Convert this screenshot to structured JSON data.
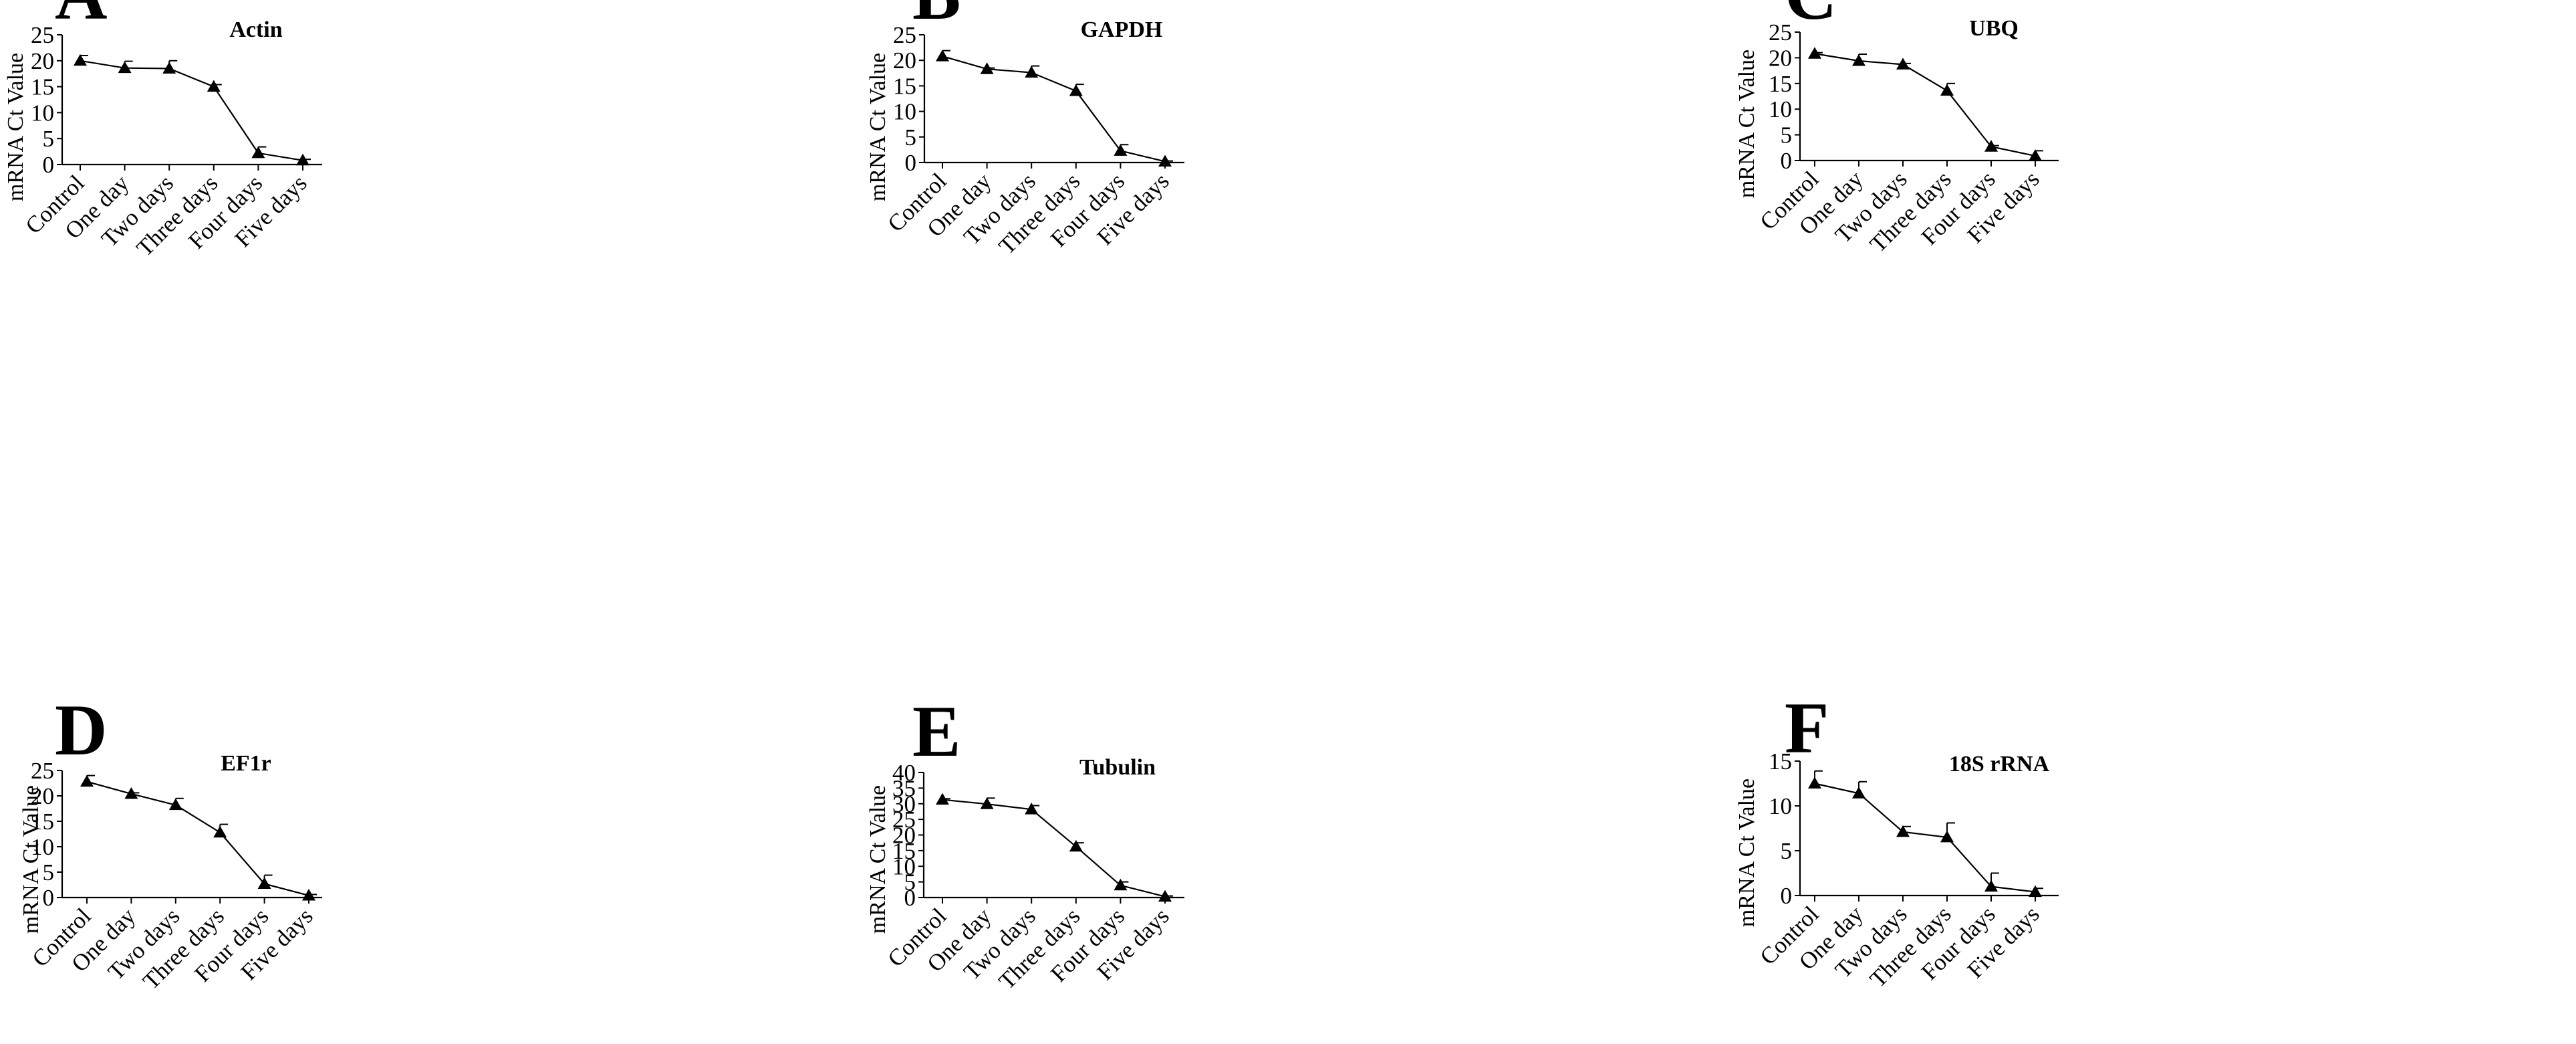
{
  "chart_data": [
    {
      "type": "line",
      "panel": "A",
      "title": "Actin",
      "xlabel": "",
      "ylabel": "mRNA Ct Value",
      "categories": [
        "Control",
        "One day",
        "Two days",
        "Three days",
        "Four days",
        "Five days"
      ],
      "values": [
        20.0,
        18.6,
        18.5,
        15.0,
        2.2,
        0.8
      ],
      "error": [
        1.0,
        1.3,
        1.5,
        0.4,
        1.2,
        0.2
      ],
      "ylim": [
        0,
        25
      ],
      "yticks": [
        0,
        5,
        10,
        15,
        20,
        25
      ],
      "marker": "triangle",
      "color": "#000000"
    },
    {
      "type": "line",
      "panel": "B",
      "title": "GAPDH",
      "xlabel": "",
      "ylabel": "mRNA Ct Value",
      "categories": [
        "Control",
        "One day",
        "Two days",
        "Three days",
        "Four days",
        "Five days"
      ],
      "values": [
        20.8,
        18.3,
        17.6,
        14.0,
        2.3,
        0.2
      ],
      "error": [
        1.1,
        0.2,
        1.3,
        1.3,
        1.2,
        0.1
      ],
      "ylim": [
        0,
        25
      ],
      "yticks": [
        0,
        5,
        10,
        15,
        20,
        25
      ],
      "marker": "triangle",
      "color": "#000000"
    },
    {
      "type": "line",
      "panel": "C",
      "title": "UBQ",
      "xlabel": "",
      "ylabel": "mRNA Ct Value",
      "categories": [
        "Control",
        "One day",
        "Two days",
        "Three days",
        "Four days",
        "Five days"
      ],
      "values": [
        20.8,
        19.4,
        18.7,
        13.6,
        2.7,
        0.9
      ],
      "error": [
        0.2,
        1.3,
        0.2,
        1.4,
        0.2,
        1.0
      ],
      "ylim": [
        0,
        25
      ],
      "yticks": [
        0,
        5,
        10,
        15,
        20,
        25
      ],
      "marker": "triangle",
      "color": "#000000"
    },
    {
      "type": "line",
      "panel": "D",
      "title": "EF1r",
      "xlabel": "",
      "ylabel": "mRNA Ct Value",
      "categories": [
        "Control",
        "One day",
        "Two days",
        "Three days",
        "Four days",
        "Five days"
      ],
      "values": [
        22.8,
        20.4,
        18.2,
        12.8,
        2.7,
        0.4
      ],
      "error": [
        1.2,
        0.2,
        1.3,
        1.6,
        1.7,
        0.2
      ],
      "ylim": [
        0,
        25
      ],
      "yticks": [
        0,
        5,
        10,
        15,
        20,
        25
      ],
      "marker": "triangle",
      "color": "#000000"
    },
    {
      "type": "line",
      "panel": "E",
      "title": "Tubulin",
      "xlabel": "",
      "ylabel": "mRNA Ct Value",
      "categories": [
        "Control",
        "One day",
        "Two days",
        "Three days",
        "Four days",
        "Five days"
      ],
      "values": [
        31.3,
        29.9,
        28.2,
        16.3,
        3.9,
        0.3
      ],
      "error": [
        0.3,
        1.9,
        1.2,
        1.2,
        1.1,
        0.2
      ],
      "ylim": [
        0,
        40
      ],
      "yticks": [
        0,
        5,
        10,
        15,
        20,
        25,
        30,
        35,
        40
      ],
      "marker": "triangle",
      "color": "#000000"
    },
    {
      "type": "line",
      "panel": "F",
      "title": "18S rRNA",
      "xlabel": "",
      "ylabel": "mRNA Ct Value",
      "categories": [
        "Control",
        "One day",
        "Two days",
        "Three days",
        "Four days",
        "Five days"
      ],
      "values": [
        12.5,
        11.4,
        7.1,
        6.5,
        1.0,
        0.4
      ],
      "error": [
        1.4,
        1.3,
        0.6,
        1.6,
        1.5,
        0.4
      ],
      "ylim": [
        0,
        15
      ],
      "yticks": [
        0,
        5,
        10,
        15
      ],
      "marker": "triangle",
      "color": "#000000"
    }
  ]
}
